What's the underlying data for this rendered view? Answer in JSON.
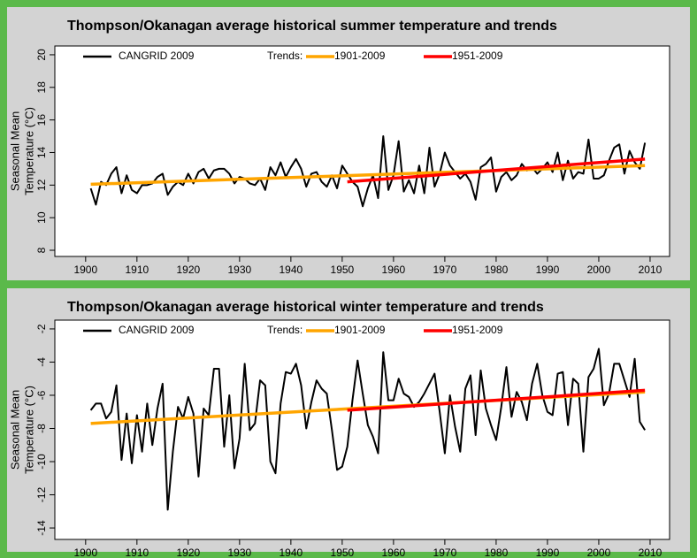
{
  "chart_data": [
    {
      "type": "line",
      "title": "Thompson/Okanagan  average historical summer temperature and trends",
      "ylabel": [
        "Seasonal Mean",
        "Temperature (°C)"
      ],
      "legend_prefix": "Trends:",
      "legend": "top",
      "xlim": [
        1894,
        2013.8
      ],
      "xticks": [
        1900,
        1910,
        1920,
        1930,
        1940,
        1950,
        1960,
        1970,
        1980,
        1990,
        2000,
        2010
      ],
      "ylim": [
        7.62,
        20.54
      ],
      "yticks": [
        8,
        10,
        12,
        14,
        16,
        18,
        20
      ],
      "x": [
        1901,
        1902,
        1903,
        1904,
        1905,
        1906,
        1907,
        1908,
        1909,
        1910,
        1911,
        1912,
        1913,
        1914,
        1915,
        1916,
        1917,
        1918,
        1919,
        1920,
        1921,
        1922,
        1923,
        1924,
        1925,
        1926,
        1927,
        1928,
        1929,
        1930,
        1931,
        1932,
        1933,
        1934,
        1935,
        1936,
        1937,
        1938,
        1939,
        1940,
        1941,
        1942,
        1943,
        1944,
        1945,
        1946,
        1947,
        1948,
        1949,
        1950,
        1951,
        1952,
        1953,
        1954,
        1955,
        1956,
        1957,
        1958,
        1959,
        1960,
        1961,
        1962,
        1963,
        1964,
        1965,
        1966,
        1967,
        1968,
        1969,
        1970,
        1971,
        1972,
        1973,
        1974,
        1975,
        1976,
        1977,
        1978,
        1979,
        1980,
        1981,
        1982,
        1983,
        1984,
        1985,
        1986,
        1987,
        1988,
        1989,
        1990,
        1991,
        1992,
        1993,
        1994,
        1995,
        1996,
        1997,
        1998,
        1999,
        2000,
        2001,
        2002,
        2003,
        2004,
        2005,
        2006,
        2007,
        2008,
        2009
      ],
      "series": [
        {
          "name": "CANGRID 2009",
          "color": "#000000",
          "values": [
            11.8,
            10.8,
            12.2,
            12.0,
            12.7,
            13.1,
            11.5,
            12.6,
            11.7,
            11.5,
            12.0,
            12.0,
            12.1,
            12.5,
            12.7,
            11.4,
            11.9,
            12.2,
            12.0,
            12.7,
            12.1,
            12.8,
            13.0,
            12.4,
            12.9,
            13.0,
            13.0,
            12.7,
            12.1,
            12.5,
            12.4,
            12.1,
            12.0,
            12.4,
            11.7,
            13.1,
            12.6,
            13.4,
            12.5,
            13.1,
            13.6,
            13.0,
            11.9,
            12.7,
            12.8,
            12.2,
            11.9,
            12.6,
            11.8,
            13.2,
            12.7,
            12.2,
            11.9,
            10.7,
            11.8,
            12.6,
            11.2,
            15.0,
            11.7,
            12.6,
            14.7,
            11.6,
            12.3,
            11.5,
            13.2,
            11.5,
            14.3,
            11.9,
            12.7,
            14.0,
            13.2,
            12.8,
            12.4,
            12.7,
            12.2,
            11.1,
            13.1,
            13.3,
            13.7,
            11.6,
            12.5,
            12.8,
            12.3,
            12.6,
            13.3,
            12.9,
            13.1,
            12.7,
            13.0,
            13.4,
            12.8,
            14.0,
            12.3,
            13.5,
            12.4,
            12.8,
            12.7,
            14.8,
            12.4,
            12.4,
            12.6,
            13.5,
            14.3,
            14.5,
            12.7,
            14.1,
            13.4,
            13.0,
            14.6
          ]
        },
        {
          "name": "1901-2009",
          "color": "#ffa500",
          "x": [
            1901,
            2009
          ],
          "values": [
            12.05,
            13.2
          ]
        },
        {
          "name": "1951-2009",
          "color": "#ff0000",
          "x": [
            1951,
            2009
          ],
          "values": [
            12.2,
            13.6
          ]
        }
      ]
    },
    {
      "type": "line",
      "title": "Thompson/Okanagan  average historical winter temperature and trends",
      "ylabel": [
        "Seasonal Mean",
        "Temperature (°C)"
      ],
      "legend_prefix": "Trends:",
      "legend": "top",
      "xlim": [
        1894,
        2013.8
      ],
      "xticks": [
        1900,
        1910,
        1920,
        1930,
        1940,
        1950,
        1960,
        1970,
        1980,
        1990,
        2000,
        2010
      ],
      "ylim": [
        -14.69,
        -1.47
      ],
      "yticks": [
        -2,
        -4,
        -6,
        -8,
        -10,
        -12,
        -14
      ],
      "x": [
        1901,
        1902,
        1903,
        1904,
        1905,
        1906,
        1907,
        1908,
        1909,
        1910,
        1911,
        1912,
        1913,
        1914,
        1915,
        1916,
        1917,
        1918,
        1919,
        1920,
        1921,
        1922,
        1923,
        1924,
        1925,
        1926,
        1927,
        1928,
        1929,
        1930,
        1931,
        1932,
        1933,
        1934,
        1935,
        1936,
        1937,
        1938,
        1939,
        1940,
        1941,
        1942,
        1943,
        1944,
        1945,
        1946,
        1947,
        1948,
        1949,
        1950,
        1951,
        1952,
        1953,
        1954,
        1955,
        1956,
        1957,
        1958,
        1959,
        1960,
        1961,
        1962,
        1963,
        1964,
        1965,
        1966,
        1967,
        1968,
        1969,
        1970,
        1971,
        1972,
        1973,
        1974,
        1975,
        1976,
        1977,
        1978,
        1979,
        1980,
        1981,
        1982,
        1983,
        1984,
        1985,
        1986,
        1987,
        1988,
        1989,
        1990,
        1991,
        1992,
        1993,
        1994,
        1995,
        1996,
        1997,
        1998,
        1999,
        2000,
        2001,
        2002,
        2003,
        2004,
        2005,
        2006,
        2007,
        2008,
        2009
      ],
      "series": [
        {
          "name": "CANGRID 2009",
          "color": "#000000",
          "values": [
            -6.9,
            -6.5,
            -6.5,
            -7.4,
            -7.0,
            -5.4,
            -9.9,
            -7.1,
            -10.1,
            -7.2,
            -9.4,
            -6.5,
            -9.0,
            -6.8,
            -5.3,
            -12.9,
            -9.4,
            -6.7,
            -7.4,
            -6.1,
            -7.1,
            -10.9,
            -6.8,
            -7.2,
            -4.4,
            -4.4,
            -9.1,
            -6.0,
            -10.4,
            -8.6,
            -4.1,
            -8.1,
            -7.7,
            -5.1,
            -5.4,
            -10.0,
            -10.7,
            -6.5,
            -4.6,
            -4.7,
            -4.1,
            -5.4,
            -8.0,
            -6.4,
            -5.1,
            -5.6,
            -5.9,
            -8.1,
            -10.5,
            -10.3,
            -9.1,
            -6.3,
            -3.9,
            -5.9,
            -7.8,
            -8.5,
            -9.5,
            -3.4,
            -6.3,
            -6.3,
            -5.0,
            -5.9,
            -6.1,
            -6.7,
            -6.4,
            -5.9,
            -5.3,
            -4.7,
            -7.0,
            -9.5,
            -6.0,
            -7.9,
            -9.4,
            -5.6,
            -4.8,
            -8.4,
            -4.5,
            -6.8,
            -7.8,
            -8.7,
            -6.7,
            -4.3,
            -7.3,
            -5.8,
            -6.4,
            -7.5,
            -5.3,
            -4.1,
            -6.0,
            -7.0,
            -7.2,
            -4.7,
            -4.6,
            -7.8,
            -5.0,
            -5.3,
            -9.4,
            -4.9,
            -4.4,
            -3.2,
            -6.6,
            -5.9,
            -4.1,
            -4.1,
            -5.1,
            -6.1,
            -3.8,
            -7.6,
            -8.1
          ]
        },
        {
          "name": "1901-2009",
          "color": "#ffa500",
          "x": [
            1901,
            2009
          ],
          "values": [
            -7.7,
            -5.8
          ]
        },
        {
          "name": "1951-2009",
          "color": "#ff0000",
          "x": [
            1951,
            2009
          ],
          "values": [
            -6.9,
            -5.7
          ]
        }
      ]
    }
  ]
}
